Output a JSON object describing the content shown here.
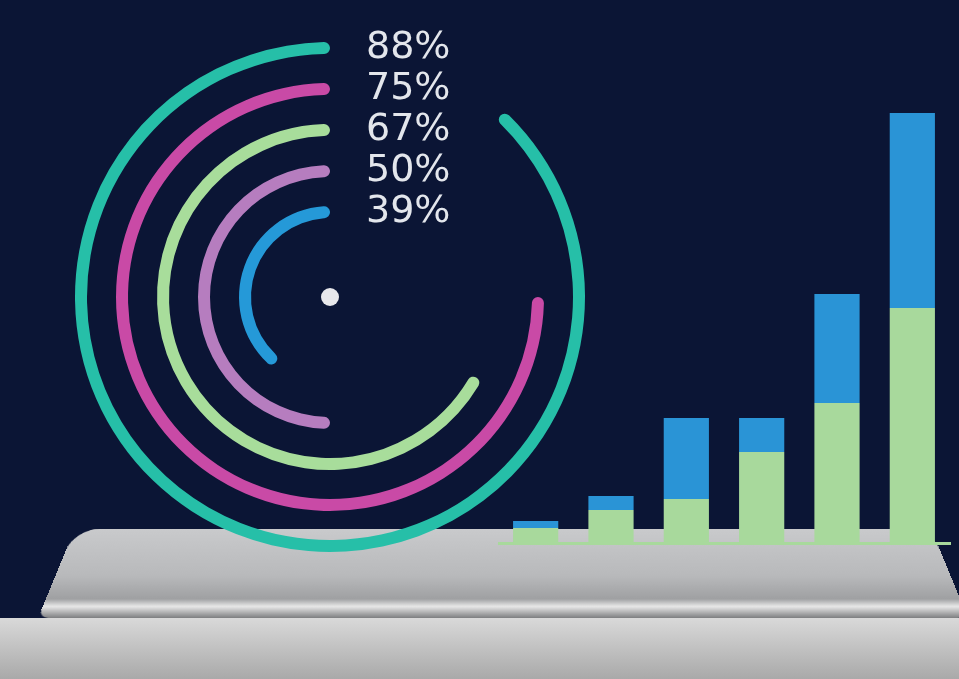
{
  "chart_data": [
    {
      "type": "radial_bar",
      "values": [
        88,
        75,
        67,
        50,
        39
      ],
      "value_labels": [
        "88%",
        "75%",
        "67%",
        "50%",
        "39%"
      ],
      "colors": [
        "#26bfa8",
        "#c94aa6",
        "#a8dd9b",
        "#b67dbf",
        "#2599d8"
      ],
      "ylim": [
        0,
        100
      ],
      "data_labels": true,
      "tick_labels": false
    },
    {
      "type": "bar",
      "categories": [
        null,
        null,
        null,
        null,
        null,
        null
      ],
      "stacked": true,
      "series": [
        {
          "color": "#a8d99c",
          "values": [
            15,
            33,
            44,
            91,
            140,
            235
          ]
        },
        {
          "color": "#2a94d6",
          "values": [
            7,
            14,
            81,
            34,
            109,
            195
          ]
        }
      ],
      "ylim": [
        0,
        430
      ],
      "grid": false,
      "tick_labels": false
    }
  ]
}
